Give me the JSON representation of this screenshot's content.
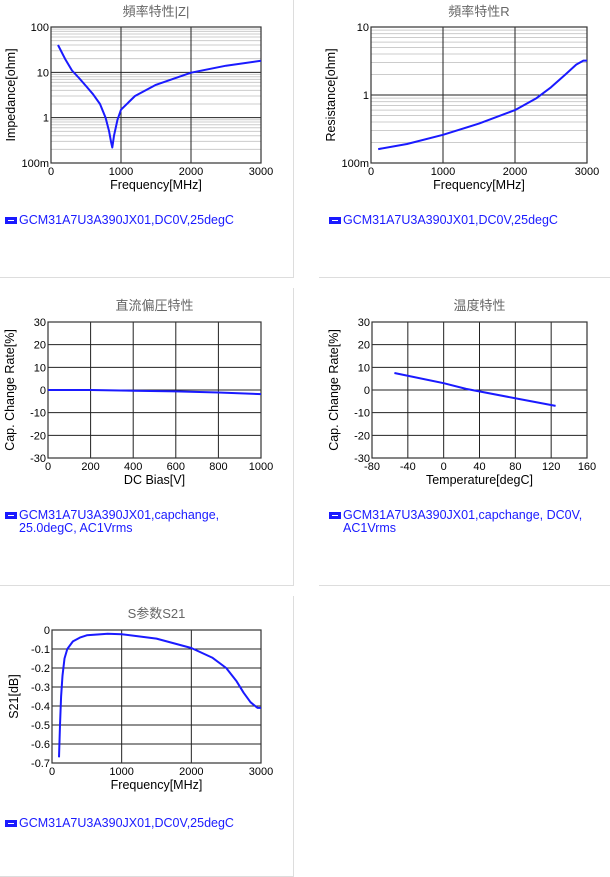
{
  "chart_data": [
    {
      "type": "line",
      "title": "頻率特性|Z|",
      "xlabel": "Frequency[MHz]",
      "ylabel": "Impedance[ohm]",
      "yscale": "log",
      "xlim": [
        0,
        3000
      ],
      "ylim": [
        0.1,
        100
      ],
      "xticks": [
        "0",
        "1000",
        "2000",
        "3000"
      ],
      "xtickvals": [
        0,
        1000,
        2000,
        3000
      ],
      "yticks": [
        "100m",
        "1",
        "10",
        "100"
      ],
      "ytickvals": [
        0.1,
        1,
        10,
        100
      ],
      "legend": "GCM31A7U3A390JX01,DC0V,25degC",
      "x": [
        100,
        200,
        300,
        400,
        500,
        600,
        700,
        780,
        830,
        860,
        875,
        900,
        950,
        1000,
        1200,
        1500,
        2000,
        2500,
        3000
      ],
      "y": [
        40,
        20,
        11,
        7.5,
        5,
        3.3,
        2,
        1.0,
        0.5,
        0.28,
        0.22,
        0.4,
        0.9,
        1.5,
        3,
        5.3,
        9.8,
        14,
        18
      ]
    },
    {
      "type": "line",
      "title": "頻率特性R",
      "xlabel": "Frequency[MHz]",
      "ylabel": "Resistance[ohm]",
      "yscale": "log",
      "xlim": [
        0,
        3000
      ],
      "ylim": [
        0.1,
        10
      ],
      "xticks": [
        "0",
        "1000",
        "2000",
        "3000"
      ],
      "xtickvals": [
        0,
        1000,
        2000,
        3000
      ],
      "yticks": [
        "100m",
        "1",
        "10"
      ],
      "ytickvals": [
        0.1,
        1,
        10
      ],
      "legend": "GCM31A7U3A390JX01,DC0V,25degC",
      "x": [
        100,
        500,
        1000,
        1500,
        2000,
        2300,
        2500,
        2700,
        2850,
        2950,
        3000
      ],
      "y": [
        0.16,
        0.19,
        0.26,
        0.38,
        0.6,
        0.9,
        1.3,
        2.0,
        2.8,
        3.2,
        3.2
      ]
    },
    {
      "type": "line",
      "title": "直流偏圧特性",
      "xlabel": "DC Bias[V]",
      "ylabel": "Cap. Change Rate[%]",
      "yscale": "linear",
      "xlim": [
        0,
        1000
      ],
      "ylim": [
        -30,
        30
      ],
      "xticks": [
        "0",
        "200",
        "400",
        "600",
        "800",
        "1000"
      ],
      "xtickvals": [
        0,
        200,
        400,
        600,
        800,
        1000
      ],
      "yticks": [
        "-30",
        "-20",
        "-10",
        "0",
        "10",
        "20",
        "30"
      ],
      "ytickvals": [
        -30,
        -20,
        -10,
        0,
        10,
        20,
        30
      ],
      "legend": "GCM31A7U3A390JX01,capchange, 25.0degC, AC1Vrms",
      "x": [
        0,
        200,
        400,
        600,
        800,
        1000
      ],
      "y": [
        0,
        0,
        -0.3,
        -0.6,
        -1.1,
        -1.8
      ]
    },
    {
      "type": "line",
      "title": "温度特性",
      "xlabel": "Temperature[degC]",
      "ylabel": "Cap. Change Rate[%]",
      "yscale": "linear",
      "xlim": [
        -80,
        160
      ],
      "ylim": [
        -30,
        30
      ],
      "xticks": [
        "-80",
        "-40",
        "0",
        "40",
        "80",
        "120",
        "160"
      ],
      "xtickvals": [
        -80,
        -40,
        0,
        40,
        80,
        120,
        160
      ],
      "yticks": [
        "-30",
        "-20",
        "-10",
        "0",
        "10",
        "20",
        "30"
      ],
      "ytickvals": [
        -30,
        -20,
        -10,
        0,
        10,
        20,
        30
      ],
      "legend": "GCM31A7U3A390JX01,capchange, DC0V, AC1Vrms",
      "x": [
        -55,
        0,
        25,
        85,
        125
      ],
      "y": [
        7.5,
        3,
        0.5,
        -4,
        -7
      ]
    },
    {
      "type": "line",
      "title": "S参数S21",
      "xlabel": "Frequency[MHz]",
      "ylabel": "S21[dB]",
      "yscale": "linear",
      "xlim": [
        0,
        3000
      ],
      "ylim": [
        -0.7,
        0
      ],
      "xticks": [
        "0",
        "1000",
        "2000",
        "3000"
      ],
      "xtickvals": [
        0,
        1000,
        2000,
        3000
      ],
      "yticks": [
        "-0.7",
        "-0.6",
        "-0.5",
        "-0.4",
        "-0.3",
        "-0.2",
        "-0.1",
        "0"
      ],
      "ytickvals": [
        -0.7,
        -0.6,
        -0.5,
        -0.4,
        -0.3,
        -0.2,
        -0.1,
        0
      ],
      "legend": "GCM31A7U3A390JX01,DC0V,25degC",
      "x": [
        100,
        115,
        130,
        150,
        180,
        220,
        300,
        400,
        500,
        800,
        1000,
        1500,
        2000,
        2300,
        2500,
        2650,
        2750,
        2850,
        2950,
        3000
      ],
      "y": [
        -0.67,
        -0.5,
        -0.35,
        -0.24,
        -0.15,
        -0.1,
        -0.06,
        -0.04,
        -0.028,
        -0.02,
        -0.022,
        -0.045,
        -0.095,
        -0.145,
        -0.2,
        -0.27,
        -0.33,
        -0.38,
        -0.41,
        -0.41
      ]
    }
  ],
  "colors": {
    "series": "#1a1aff",
    "grid": "#000000",
    "minor": "#cccccc",
    "title": "#666666"
  }
}
